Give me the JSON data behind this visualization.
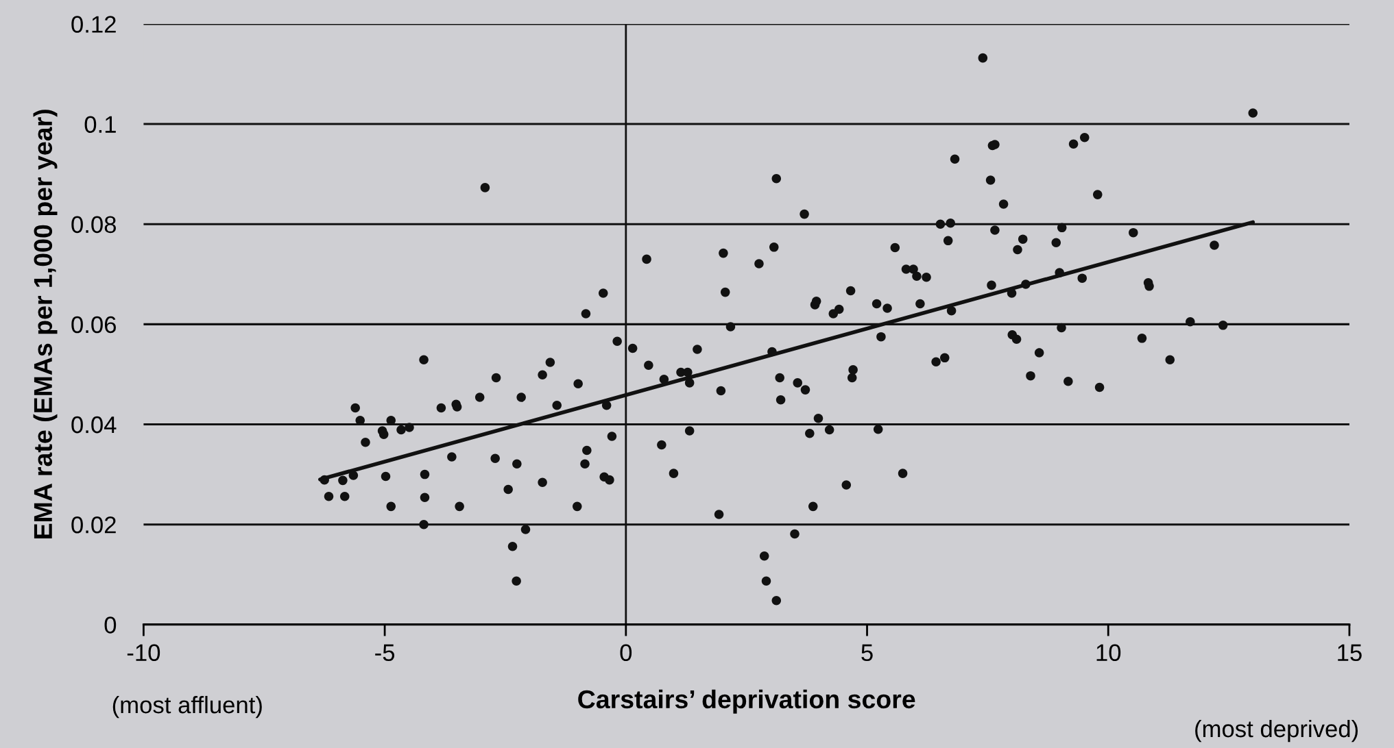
{
  "chart_data": {
    "type": "scatter",
    "xlabel": "Carstairs’ deprivation score",
    "ylabel": "EMA rate (EMAs per 1,000 per year)",
    "annotations": [
      "(most affluent)",
      "(most deprived)"
    ],
    "xlim": [
      -10,
      15
    ],
    "xticks": [
      -10,
      -5,
      0,
      5,
      10,
      15
    ],
    "ylim": [
      0,
      0.12
    ],
    "yticks": [
      0,
      0.02,
      0.04,
      0.06,
      0.08,
      0.1,
      0.12
    ],
    "grid": "y",
    "legend": false,
    "ref_lines": [
      {
        "axis": "x",
        "value": 0,
        "color": "#111111"
      }
    ],
    "series": [
      {
        "color": "#111111",
        "marker": "circle",
        "x": [
          -6.25,
          -6.16,
          -5.87,
          -5.83,
          -5.65,
          -5.61,
          -5.51,
          -5.4,
          -5.05,
          -5.02,
          -4.87,
          -4.98,
          -4.87,
          -4.66,
          -4.49,
          -4.19,
          -4.17,
          -4.17,
          -4.19,
          -3.83,
          -3.61,
          -3.52,
          -3.5,
          -3.45,
          -3.03,
          -2.92,
          -2.69,
          -2.71,
          -2.44,
          -2.35,
          -2.27,
          -2.26,
          -2.17,
          -2.08,
          -1.73,
          -1.73,
          -1.57,
          -1.43,
          -1.01,
          -0.99,
          -0.85,
          -0.83,
          -0.81,
          -0.47,
          -0.45,
          -0.4,
          -0.34,
          -0.29,
          -0.18,
          0.14,
          0.43,
          0.47,
          0.74,
          0.79,
          0.99,
          1.14,
          1.28,
          1.32,
          1.32,
          1.48,
          1.93,
          1.97,
          2.02,
          2.06,
          2.17,
          2.76,
          2.87,
          2.91,
          3.03,
          3.07,
          3.12,
          3.12,
          3.19,
          3.21,
          3.5,
          3.56,
          3.7,
          3.72,
          3.81,
          3.88,
          3.92,
          3.95,
          3.99,
          4.22,
          4.3,
          4.42,
          4.57,
          4.66,
          4.69,
          4.71,
          5.2,
          5.23,
          5.29,
          5.42,
          5.58,
          5.74,
          5.81,
          5.96,
          6.03,
          6.1,
          6.23,
          6.43,
          6.52,
          6.61,
          6.68,
          6.73,
          6.75,
          6.82,
          7.4,
          7.56,
          7.58,
          7.6,
          7.65,
          7.65,
          7.83,
          8.0,
          8.01,
          8.1,
          8.12,
          8.23,
          8.29,
          8.39,
          8.57,
          8.92,
          8.99,
          9.03,
          9.04,
          9.17,
          9.28,
          9.46,
          9.51,
          9.78,
          9.82,
          10.52,
          10.7,
          10.83,
          10.85,
          11.28,
          11.7,
          12.2,
          12.38,
          13.0
        ],
        "values": [
          0.0289,
          0.0256,
          0.0288,
          0.0256,
          0.0298,
          0.0433,
          0.0408,
          0.0364,
          0.0387,
          0.038,
          0.0408,
          0.0296,
          0.0236,
          0.0389,
          0.0394,
          0.0529,
          0.03,
          0.0254,
          0.02,
          0.0433,
          0.0335,
          0.044,
          0.0435,
          0.0236,
          0.0454,
          0.0873,
          0.0493,
          0.0332,
          0.027,
          0.0156,
          0.0087,
          0.0321,
          0.0454,
          0.019,
          0.0284,
          0.0499,
          0.0524,
          0.0438,
          0.0236,
          0.0481,
          0.0321,
          0.0621,
          0.0348,
          0.0662,
          0.0295,
          0.0438,
          0.0289,
          0.0376,
          0.0566,
          0.0552,
          0.073,
          0.0518,
          0.0359,
          0.049,
          0.0302,
          0.0504,
          0.0504,
          0.0483,
          0.0387,
          0.055,
          0.022,
          0.0467,
          0.0742,
          0.0664,
          0.0595,
          0.0721,
          0.0137,
          0.0087,
          0.0545,
          0.0754,
          0.0891,
          0.0048,
          0.0493,
          0.0449,
          0.0181,
          0.0483,
          0.082,
          0.0469,
          0.0382,
          0.0236,
          0.0639,
          0.0646,
          0.0412,
          0.0389,
          0.0621,
          0.063,
          0.0279,
          0.0667,
          0.0493,
          0.0509,
          0.0641,
          0.039,
          0.0575,
          0.0632,
          0.0753,
          0.0302,
          0.071,
          0.071,
          0.0696,
          0.0641,
          0.0694,
          0.0525,
          0.08,
          0.0533,
          0.0767,
          0.0802,
          0.0627,
          0.093,
          0.1132,
          0.0888,
          0.0678,
          0.0957,
          0.0959,
          0.0788,
          0.084,
          0.0662,
          0.0579,
          0.057,
          0.0749,
          0.077,
          0.068,
          0.0497,
          0.0543,
          0.0763,
          0.0703,
          0.0593,
          0.0793,
          0.0486,
          0.096,
          0.0692,
          0.0973,
          0.0859,
          0.0474,
          0.0783,
          0.0572,
          0.0683,
          0.0676,
          0.0529,
          0.0605,
          0.0758,
          0.0598,
          0.1022
        ]
      },
      {
        "type": "line",
        "marker": "none",
        "color": "#111111",
        "x": [
          -6.34,
          13.0
        ],
        "values": [
          0.029,
          0.0804
        ]
      }
    ]
  }
}
